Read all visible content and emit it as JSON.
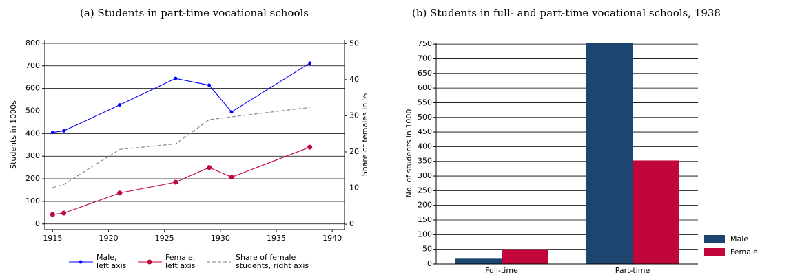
{
  "chart_data": [
    {
      "type": "line",
      "title": "(a) Students in part-time vocational schools",
      "x": [
        1915,
        1916,
        1921,
        1926,
        1929,
        1931,
        1938
      ],
      "series": [
        {
          "name": "Male,\nleft axis",
          "color": "#0000ff",
          "values": [
            405,
            412,
            527,
            644,
            614,
            496,
            712
          ],
          "marker": true,
          "linestyle": "solid"
        },
        {
          "name": "Female,\nleft axis",
          "color": "#c0063a",
          "values": [
            42,
            48,
            137,
            185,
            250,
            207,
            340
          ],
          "marker": true,
          "linestyle": "solid"
        },
        {
          "name": "Share of female\nstudents, right axis",
          "color": "#808080",
          "values": [
            10.1,
            11,
            20.7,
            22.2,
            28.9,
            29.7,
            32.3
          ],
          "axis": "y2",
          "marker": false,
          "linestyle": "dashed"
        }
      ],
      "ylabel": "Students in 1000s",
      "y2label": "Share of females in %",
      "xlim": [
        1914.3,
        1941.1
      ],
      "xticks": [
        1915,
        1920,
        1925,
        1930,
        1935,
        1940
      ],
      "ylim": [
        -25,
        815
      ],
      "yticks": [
        0,
        100,
        200,
        300,
        400,
        500,
        600,
        700,
        800
      ],
      "y2lim": [
        -1.5,
        51
      ],
      "y2ticks": [
        0,
        10,
        20,
        30,
        40,
        50
      ],
      "grid": true,
      "legend": "bottom"
    },
    {
      "type": "bar",
      "title": "(b) Students in full- and part-time vocational schools, 1938",
      "categories": [
        "Full-time",
        "Part-time"
      ],
      "series": [
        {
          "name": "Male",
          "color": "#1c4670",
          "values": [
            18,
            753
          ]
        },
        {
          "name": "Female",
          "color": "#c0063a",
          "values": [
            50,
            353
          ]
        }
      ],
      "ylabel": "No. of students in 1000",
      "ylim": [
        0,
        755
      ],
      "yticks": [
        0,
        50,
        100,
        150,
        200,
        250,
        300,
        350,
        400,
        450,
        500,
        550,
        600,
        650,
        700,
        750
      ],
      "grid": true,
      "legend": "right"
    }
  ]
}
